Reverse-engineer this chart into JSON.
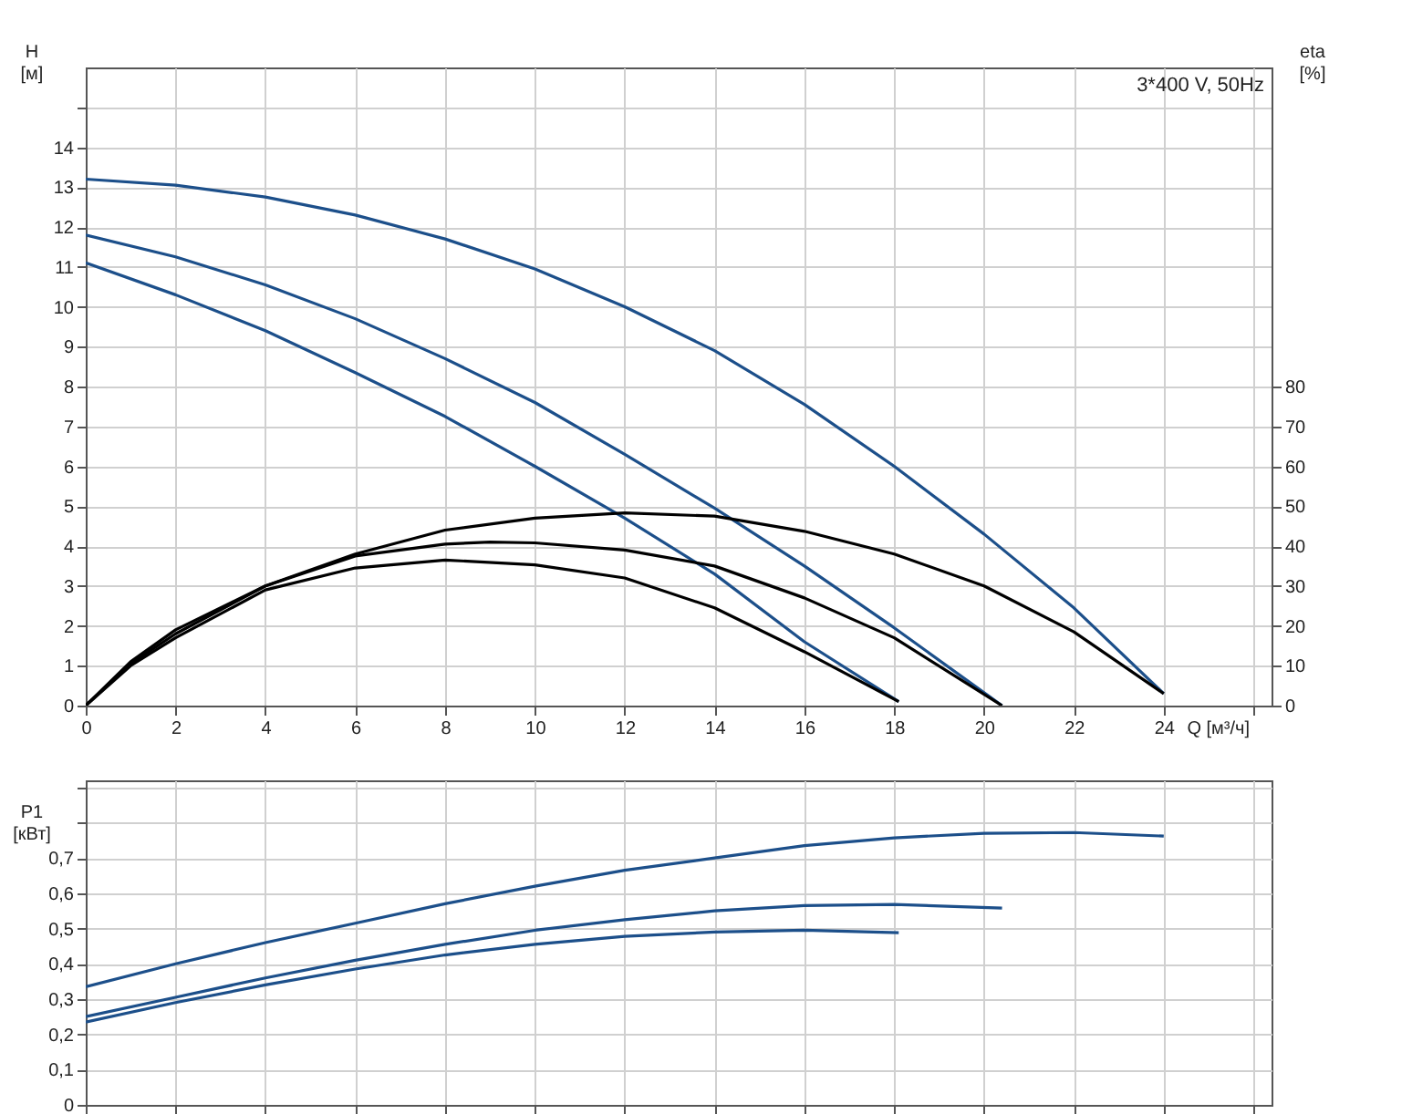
{
  "chart_data": [
    {
      "type": "line",
      "xlabel": "Q [м³/ч]",
      "ylabel": "H [м]",
      "y2label": "eta [%]",
      "annotations": [
        "3*400 V, 50Hz"
      ],
      "xlim": [
        0,
        26.4
      ],
      "xticks": [
        0,
        2,
        4,
        6,
        8,
        10,
        12,
        14,
        16,
        18,
        20,
        22,
        24,
        {
          "value": 26,
          "label": null
        }
      ],
      "ylim": [
        0,
        16
      ],
      "yticks": [
        0,
        1,
        2,
        3,
        4,
        5,
        6,
        7,
        8,
        9,
        10,
        11,
        12,
        13,
        14,
        {
          "value": 15,
          "label": null
        }
      ],
      "y2lim": [
        0,
        160
      ],
      "y2ticks": [
        0,
        10,
        20,
        30,
        40,
        50,
        60,
        70,
        80
      ],
      "grid": true,
      "legend": false,
      "marker": "none",
      "line_style": "solid",
      "series": [
        {
          "color": "#1c4f8a",
          "x": [
            0,
            2,
            4,
            6,
            8,
            10,
            12,
            14,
            16,
            18,
            20,
            22,
            24
          ],
          "values": [
            13.2,
            13.05,
            12.75,
            12.3,
            11.7,
            10.95,
            10.0,
            8.9,
            7.55,
            6.0,
            4.3,
            2.45,
            0.3
          ]
        },
        {
          "color": "#1c4f8a",
          "x": [
            0,
            2,
            4,
            6,
            8,
            10,
            12,
            14,
            16,
            18,
            20.4
          ],
          "values": [
            11.8,
            11.25,
            10.55,
            9.7,
            8.7,
            7.6,
            6.3,
            4.95,
            3.5,
            1.95,
            0
          ]
        },
        {
          "color": "#1c4f8a",
          "x": [
            0,
            2,
            4,
            6,
            8,
            10,
            12,
            14,
            16,
            18.1
          ],
          "values": [
            11.1,
            10.3,
            9.4,
            8.35,
            7.25,
            6.0,
            4.7,
            3.3,
            1.6,
            0.1
          ]
        },
        {
          "color": "#000000",
          "axis": "y2",
          "x": [
            0,
            1,
            2,
            4,
            6,
            8,
            10,
            12,
            14,
            16,
            18,
            20,
            22,
            24
          ],
          "values": [
            0,
            11,
            19,
            30,
            38,
            44,
            47,
            48.3,
            47.5,
            43.7,
            38,
            30,
            18.5,
            3
          ]
        },
        {
          "color": "#000000",
          "axis": "y2",
          "x": [
            0,
            1,
            2,
            4,
            6,
            8,
            9,
            10,
            12,
            14,
            16,
            18,
            20.4
          ],
          "values": [
            0,
            10.5,
            18,
            30,
            37.5,
            40.5,
            41,
            40.8,
            39,
            35,
            27,
            17,
            0
          ]
        },
        {
          "color": "#000000",
          "axis": "y2",
          "x": [
            0,
            1,
            2,
            4,
            6,
            8,
            10,
            12,
            14,
            16,
            18.1
          ],
          "values": [
            0,
            10,
            17,
            29,
            34.5,
            36.5,
            35.3,
            32,
            24.5,
            13.5,
            1
          ]
        }
      ]
    },
    {
      "type": "line",
      "ylabel": "P1 [кВт]",
      "tick_labels": "y",
      "xlim": [
        0,
        26.4
      ],
      "xticks": [
        0,
        2,
        4,
        6,
        8,
        10,
        12,
        14,
        16,
        18,
        20,
        22,
        24,
        26
      ],
      "ylim": [
        0,
        0.92
      ],
      "yticks": [
        {
          "value": 0,
          "label": "0"
        },
        {
          "value": 0.1,
          "label": "0,1"
        },
        {
          "value": 0.2,
          "label": "0,2"
        },
        {
          "value": 0.3,
          "label": "0,3"
        },
        {
          "value": 0.4,
          "label": "0,4"
        },
        {
          "value": 0.5,
          "label": "0,5"
        },
        {
          "value": 0.6,
          "label": "0,6"
        },
        {
          "value": 0.7,
          "label": "0,7"
        },
        {
          "value": 0.8,
          "label": null
        },
        {
          "value": 0.9,
          "label": null
        }
      ],
      "grid": true,
      "legend": false,
      "marker": "none",
      "line_style": "solid",
      "series": [
        {
          "color": "#1c4f8a",
          "x": [
            0,
            2,
            4,
            6,
            8,
            10,
            12,
            14,
            16,
            18,
            20,
            22,
            24
          ],
          "values": [
            0.335,
            0.4,
            0.46,
            0.515,
            0.57,
            0.62,
            0.665,
            0.7,
            0.735,
            0.757,
            0.77,
            0.772,
            0.762
          ]
        },
        {
          "color": "#1c4f8a",
          "x": [
            0,
            2,
            4,
            6,
            8,
            10,
            12,
            14,
            16,
            18,
            20.4
          ],
          "values": [
            0.25,
            0.305,
            0.36,
            0.41,
            0.455,
            0.495,
            0.525,
            0.55,
            0.565,
            0.568,
            0.558
          ]
        },
        {
          "color": "#1c4f8a",
          "x": [
            0,
            2,
            4,
            6,
            8,
            10,
            12,
            14,
            16,
            18.1
          ],
          "values": [
            0.235,
            0.29,
            0.34,
            0.385,
            0.425,
            0.455,
            0.478,
            0.49,
            0.495,
            0.488
          ]
        }
      ]
    }
  ]
}
